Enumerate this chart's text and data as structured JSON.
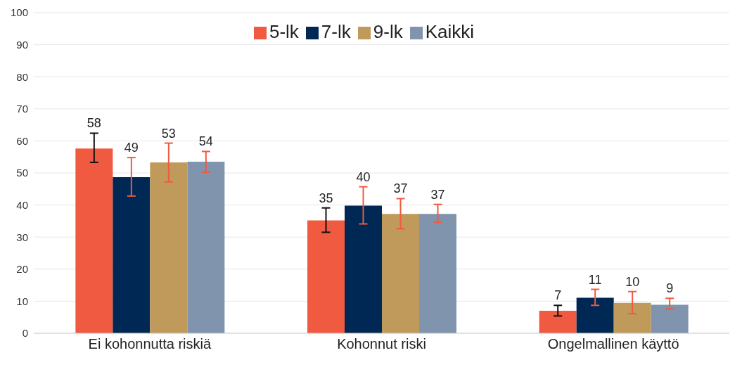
{
  "chart_data": {
    "type": "bar",
    "categories": [
      "Ei kohonnutta riskiä",
      "Kohonnut riski",
      "Ongelmallinen käyttö"
    ],
    "series": [
      {
        "name": "5-lk",
        "color": "#f05a40",
        "values": [
          57.6,
          35.2,
          7
        ],
        "errors": [
          [
            53.3,
            62.4
          ],
          [
            31.5,
            39.1
          ],
          [
            5.4,
            8.7
          ]
        ],
        "value_labels": [
          "58",
          "35",
          "7"
        ]
      },
      {
        "name": "7-lk",
        "color": "#002855",
        "values": [
          48.7,
          39.8,
          11.1
        ],
        "errors": [
          [
            42.8,
            54.8
          ],
          [
            34.1,
            45.7
          ],
          [
            8.7,
            13.7
          ]
        ],
        "value_labels": [
          "49",
          "40",
          "11"
        ]
      },
      {
        "name": "9-lk",
        "color": "#c09a5b",
        "values": [
          53.3,
          37.2,
          9.5
        ],
        "errors": [
          [
            47.2,
            59.3
          ],
          [
            32.6,
            42
          ],
          [
            6.1,
            13
          ]
        ],
        "value_labels": [
          "53",
          "37",
          "10"
        ]
      },
      {
        "name": "Kaikki",
        "color": "#8094ae",
        "values": [
          53.5,
          37.2,
          8.9
        ],
        "errors": [
          [
            50.2,
            56.7
          ],
          [
            34.6,
            40.2
          ],
          [
            7.6,
            10.9
          ]
        ],
        "value_labels": [
          "54",
          "37",
          "9"
        ]
      }
    ],
    "ylim": [
      0,
      100
    ],
    "yticks": [
      0,
      10,
      20,
      30,
      40,
      50,
      60,
      70,
      80,
      90,
      100
    ],
    "grid": "y",
    "legend": "top"
  }
}
